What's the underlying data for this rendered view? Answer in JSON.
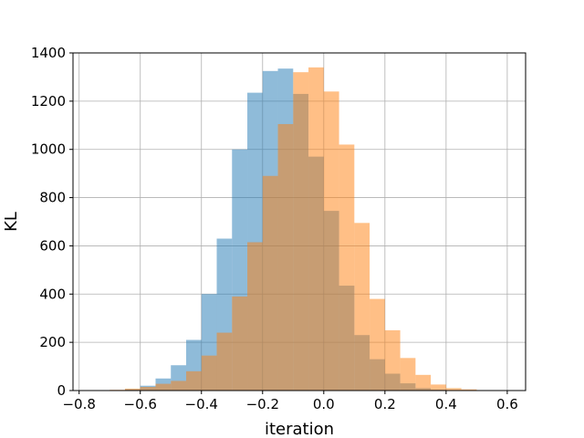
{
  "chart_data": {
    "type": "bar",
    "xlabel": "iteration",
    "ylabel": "KL",
    "xlim": [
      -0.82,
      0.66
    ],
    "ylim": [
      0,
      1400
    ],
    "xticks": [
      "−0.8",
      "−0.6",
      "−0.4",
      "−0.2",
      "0.0",
      "0.2",
      "0.4",
      "0.6"
    ],
    "xtick_values": [
      -0.8,
      -0.6,
      -0.4,
      -0.2,
      0.0,
      0.2,
      0.4,
      0.6
    ],
    "yticks": [
      "0",
      "200",
      "400",
      "600",
      "800",
      "1000",
      "1200",
      "1400"
    ],
    "ytick_values": [
      0,
      200,
      400,
      600,
      800,
      1000,
      1200,
      1400
    ],
    "grid": true,
    "series": [
      {
        "color": "#1f77b4",
        "opacity": 0.5,
        "bins": [
          [
            -0.65,
            -0.6,
            5
          ],
          [
            -0.6,
            -0.55,
            20
          ],
          [
            -0.55,
            -0.5,
            50
          ],
          [
            -0.5,
            -0.45,
            105
          ],
          [
            -0.45,
            -0.4,
            210
          ],
          [
            -0.4,
            -0.35,
            400
          ],
          [
            -0.35,
            -0.3,
            630
          ],
          [
            -0.3,
            -0.25,
            1000
          ],
          [
            -0.25,
            -0.2,
            1235
          ],
          [
            -0.2,
            -0.15,
            1325
          ],
          [
            -0.15,
            -0.1,
            1335
          ],
          [
            -0.1,
            -0.05,
            1230
          ],
          [
            -0.05,
            0.0,
            970
          ],
          [
            0.0,
            0.05,
            745
          ],
          [
            0.05,
            0.1,
            435
          ],
          [
            0.1,
            0.15,
            230
          ],
          [
            0.15,
            0.2,
            130
          ],
          [
            0.2,
            0.25,
            70
          ],
          [
            0.25,
            0.3,
            30
          ],
          [
            0.3,
            0.35,
            10
          ],
          [
            0.35,
            0.4,
            4
          ]
        ]
      },
      {
        "color": "#ff7f0e",
        "opacity": 0.5,
        "bins": [
          [
            -0.7,
            -0.65,
            3
          ],
          [
            -0.65,
            -0.6,
            8
          ],
          [
            -0.6,
            -0.55,
            15
          ],
          [
            -0.55,
            -0.5,
            28
          ],
          [
            -0.5,
            -0.45,
            40
          ],
          [
            -0.45,
            -0.4,
            80
          ],
          [
            -0.4,
            -0.35,
            145
          ],
          [
            -0.35,
            -0.3,
            240
          ],
          [
            -0.3,
            -0.25,
            390
          ],
          [
            -0.25,
            -0.2,
            615
          ],
          [
            -0.2,
            -0.15,
            890
          ],
          [
            -0.15,
            -0.1,
            1105
          ],
          [
            -0.1,
            -0.05,
            1320
          ],
          [
            -0.05,
            0.0,
            1340
          ],
          [
            0.0,
            0.05,
            1240
          ],
          [
            0.05,
            0.1,
            1020
          ],
          [
            0.1,
            0.15,
            695
          ],
          [
            0.15,
            0.2,
            380
          ],
          [
            0.2,
            0.25,
            250
          ],
          [
            0.25,
            0.3,
            135
          ],
          [
            0.3,
            0.35,
            65
          ],
          [
            0.35,
            0.4,
            25
          ],
          [
            0.4,
            0.45,
            10
          ],
          [
            0.45,
            0.5,
            5
          ]
        ]
      }
    ]
  }
}
